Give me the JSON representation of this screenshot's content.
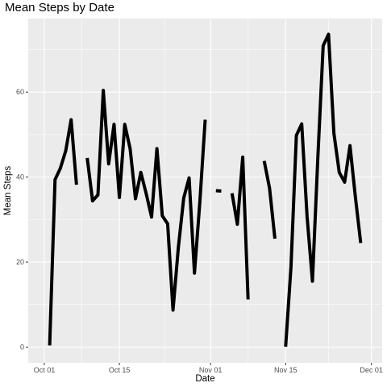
{
  "chart_data": {
    "type": "line",
    "title": "Mean Steps by Date",
    "xlabel": "Date",
    "ylabel": "Mean Steps",
    "x_type": "date",
    "xlim": [
      "2012-09-28",
      "2012-12-03"
    ],
    "ylim": [
      -3.7,
      77.3
    ],
    "x_ticks": [
      {
        "date": "2012-10-01",
        "label": "Oct 01"
      },
      {
        "date": "2012-10-15",
        "label": "Oct 15"
      },
      {
        "date": "2012-11-01",
        "label": "Nov 01"
      },
      {
        "date": "2012-11-15",
        "label": "Nov 15"
      },
      {
        "date": "2012-12-01",
        "label": "Dec 01"
      }
    ],
    "y_ticks": [
      0,
      20,
      40,
      60
    ],
    "grid": true,
    "series_color": "#000000",
    "panel_color": "#ebebeb",
    "grid_color": "#ffffff",
    "series": [
      {
        "points": [
          {
            "x": "2012-10-01",
            "y": null
          },
          {
            "x": "2012-10-02",
            "y": 0.4
          },
          {
            "x": "2012-10-03",
            "y": 39.4
          },
          {
            "x": "2012-10-04",
            "y": 42.1
          },
          {
            "x": "2012-10-05",
            "y": 46.2
          },
          {
            "x": "2012-10-06",
            "y": 53.5
          },
          {
            "x": "2012-10-07",
            "y": 38.2
          },
          {
            "x": "2012-10-08",
            "y": null
          },
          {
            "x": "2012-10-09",
            "y": 44.5
          },
          {
            "x": "2012-10-10",
            "y": 34.4
          },
          {
            "x": "2012-10-11",
            "y": 35.8
          },
          {
            "x": "2012-10-12",
            "y": 60.4
          },
          {
            "x": "2012-10-13",
            "y": 43.1
          },
          {
            "x": "2012-10-14",
            "y": 52.4
          },
          {
            "x": "2012-10-15",
            "y": 35.2
          },
          {
            "x": "2012-10-16",
            "y": 52.4
          },
          {
            "x": "2012-10-17",
            "y": 46.7
          },
          {
            "x": "2012-10-18",
            "y": 34.9
          },
          {
            "x": "2012-10-19",
            "y": 41.1
          },
          {
            "x": "2012-10-20",
            "y": 36.1
          },
          {
            "x": "2012-10-21",
            "y": 30.6
          },
          {
            "x": "2012-10-22",
            "y": 46.7
          },
          {
            "x": "2012-10-23",
            "y": 30.9
          },
          {
            "x": "2012-10-24",
            "y": 29.0
          },
          {
            "x": "2012-10-25",
            "y": 8.7
          },
          {
            "x": "2012-10-26",
            "y": 23.5
          },
          {
            "x": "2012-10-27",
            "y": 35.1
          },
          {
            "x": "2012-10-28",
            "y": 39.8
          },
          {
            "x": "2012-10-29",
            "y": 17.4
          },
          {
            "x": "2012-10-30",
            "y": 34.1
          },
          {
            "x": "2012-10-31",
            "y": 53.5
          },
          {
            "x": "2012-11-01",
            "y": null
          },
          {
            "x": "2012-11-02",
            "y": 36.8
          },
          {
            "x": "2012-11-03",
            "y": 36.7
          },
          {
            "x": "2012-11-04",
            "y": null
          },
          {
            "x": "2012-11-05",
            "y": 36.2
          },
          {
            "x": "2012-11-06",
            "y": 28.9
          },
          {
            "x": "2012-11-07",
            "y": 44.7
          },
          {
            "x": "2012-11-08",
            "y": 11.2
          },
          {
            "x": "2012-11-09",
            "y": null
          },
          {
            "x": "2012-11-10",
            "y": null
          },
          {
            "x": "2012-11-11",
            "y": 43.8
          },
          {
            "x": "2012-11-12",
            "y": 37.4
          },
          {
            "x": "2012-11-13",
            "y": 25.5
          },
          {
            "x": "2012-11-14",
            "y": null
          },
          {
            "x": "2012-11-15",
            "y": 0.1
          },
          {
            "x": "2012-11-16",
            "y": 18.9
          },
          {
            "x": "2012-11-17",
            "y": 49.8
          },
          {
            "x": "2012-11-18",
            "y": 52.5
          },
          {
            "x": "2012-11-19",
            "y": 30.7
          },
          {
            "x": "2012-11-20",
            "y": 15.5
          },
          {
            "x": "2012-11-21",
            "y": 44.4
          },
          {
            "x": "2012-11-22",
            "y": 70.9
          },
          {
            "x": "2012-11-23",
            "y": 73.6
          },
          {
            "x": "2012-11-24",
            "y": 50.3
          },
          {
            "x": "2012-11-25",
            "y": 41.1
          },
          {
            "x": "2012-11-26",
            "y": 38.8
          },
          {
            "x": "2012-11-27",
            "y": 47.4
          },
          {
            "x": "2012-11-28",
            "y": 35.4
          },
          {
            "x": "2012-11-29",
            "y": 24.5
          }
        ]
      }
    ]
  }
}
